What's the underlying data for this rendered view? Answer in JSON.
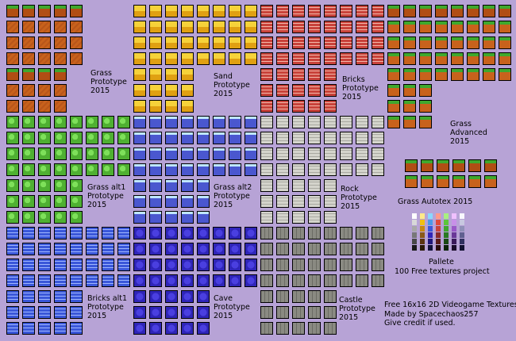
{
  "labels": {
    "grass": [
      "Grass",
      "Prototype",
      "2015"
    ],
    "sand": [
      "Sand",
      "Prototype",
      "2015"
    ],
    "bricks": [
      "Bricks",
      "Prototype",
      "2015"
    ],
    "grass_advanced": [
      "Grass",
      "Advanced",
      "2015"
    ],
    "grass_alt1": [
      "Grass alt1",
      "Prototype",
      "2015"
    ],
    "grass_alt2": [
      "Grass alt2",
      "Prototype",
      "2015"
    ],
    "rock": [
      "Rock",
      "Prototype",
      "2015"
    ],
    "grass_autotex": "Grass Autotex 2015",
    "bricks_alt1": [
      "Bricks alt1",
      "Prototype",
      "2015"
    ],
    "cave": [
      "Cave",
      "Prototype",
      "2015"
    ],
    "castle": [
      "Castle",
      "Prototype",
      "2015"
    ],
    "pallete": "Pallete",
    "project": "100 Free textures project",
    "credits": [
      "Free 16x16 2D Videogame Textures.",
      "Made by Spacechaos257",
      "Give credit if used."
    ]
  },
  "colors": {
    "background": "#b7a3d6",
    "grass_top": "#3fa82e",
    "dirt": "#c8621c",
    "sand": "#f2c010",
    "brick": "#c8423a",
    "green": "#5cc63a",
    "ice_blue": "#4a57cf",
    "stone": "#c9c9bf",
    "blue_brick": "#3a57d9",
    "cave": "#3a2fd0",
    "castle": "#8a8a82"
  }
}
